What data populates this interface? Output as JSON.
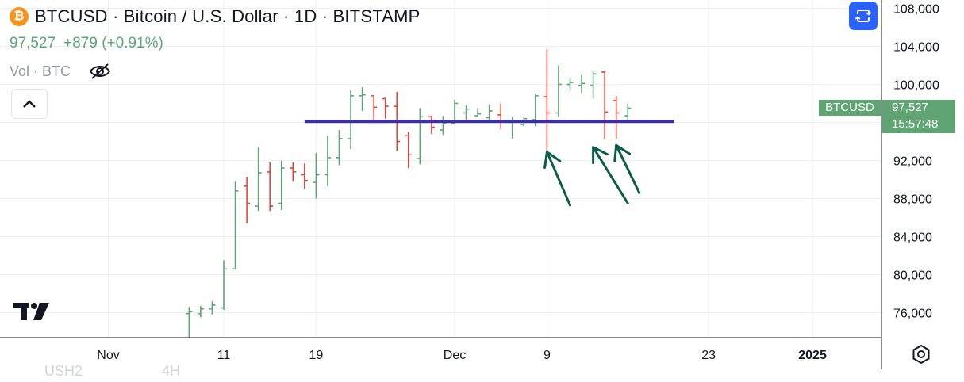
{
  "header": {
    "title": "BTCUSD · Bitcoin / U.S. Dollar · 1D · BITSTAMP",
    "coin_icon": "bitcoin-icon",
    "coin_glyph": "₿",
    "price": "97,527",
    "change": "+879 (+0.91%)",
    "volume_label": "Vol · BTC"
  },
  "price_badge": {
    "symbol": "BTCUSD",
    "price": "97,527",
    "countdown": "15:57:48"
  },
  "footer_ghost": [
    "USH2",
    "4H"
  ],
  "colors": {
    "up": "#5fa472",
    "down": "#e0453a",
    "support_line": "#3d2fa8",
    "arrow": "#0c5c48",
    "grid": "#edeff3",
    "accent_button": "#2962ff"
  },
  "chart_data": {
    "type": "ohlc",
    "title": "BTCUSD · Bitcoin / U.S. Dollar · 1D · BITSTAMP",
    "ylim": [
      73000,
      109000
    ],
    "y_ticks": [
      76000,
      80000,
      84000,
      88000,
      92000,
      96000,
      100000,
      104000,
      108000
    ],
    "y_tick_labels": [
      "76,000",
      "80,000",
      "84,000",
      "88,000",
      "92,000",
      "100,000",
      "104,000",
      "108,000"
    ],
    "x_tick_labels": [
      "Nov",
      "11",
      "19",
      "Dec",
      "9",
      "23",
      "2025"
    ],
    "x_ticks": [
      "2024-11-01",
      "2024-11-11",
      "2024-11-19",
      "2024-12-01",
      "2024-12-09",
      "2024-12-23",
      "2025-01-01"
    ],
    "xlim": [
      "2024-10-24",
      "2025-01-07"
    ],
    "grid": true,
    "candles": [
      {
        "date": "2024-11-08",
        "open": 75900,
        "high": 76600,
        "low": 73200,
        "close": 76100
      },
      {
        "date": "2024-11-09",
        "open": 75900,
        "high": 76700,
        "low": 75500,
        "close": 76400
      },
      {
        "date": "2024-11-10",
        "open": 76400,
        "high": 77200,
        "low": 75800,
        "close": 76800
      },
      {
        "date": "2024-11-11",
        "open": 76500,
        "high": 81500,
        "low": 76300,
        "close": 80600
      },
      {
        "date": "2024-11-12",
        "open": 80600,
        "high": 89800,
        "low": 80600,
        "close": 88800
      },
      {
        "date": "2024-11-13",
        "open": 89300,
        "high": 90300,
        "low": 85400,
        "close": 87500
      },
      {
        "date": "2024-11-14",
        "open": 87200,
        "high": 93400,
        "low": 86700,
        "close": 90700
      },
      {
        "date": "2024-11-15",
        "open": 90800,
        "high": 91800,
        "low": 86700,
        "close": 87200
      },
      {
        "date": "2024-11-16",
        "open": 87500,
        "high": 92000,
        "low": 86800,
        "close": 91200
      },
      {
        "date": "2024-11-17",
        "open": 91200,
        "high": 91800,
        "low": 89800,
        "close": 90800
      },
      {
        "date": "2024-11-18",
        "open": 90500,
        "high": 91700,
        "low": 89000,
        "close": 89900
      },
      {
        "date": "2024-11-19",
        "open": 89700,
        "high": 92800,
        "low": 88000,
        "close": 90500
      },
      {
        "date": "2024-11-20",
        "open": 90500,
        "high": 94600,
        "low": 89300,
        "close": 92300
      },
      {
        "date": "2024-11-21",
        "open": 92300,
        "high": 95200,
        "low": 91500,
        "close": 94300
      },
      {
        "date": "2024-11-22",
        "open": 94300,
        "high": 99400,
        "low": 93200,
        "close": 98800
      },
      {
        "date": "2024-11-23",
        "open": 98800,
        "high": 99700,
        "low": 97200,
        "close": 98900
      },
      {
        "date": "2024-11-24",
        "open": 98800,
        "high": 98700,
        "low": 96300,
        "close": 97600
      },
      {
        "date": "2024-11-25",
        "open": 98500,
        "high": 98600,
        "low": 96400,
        "close": 97700
      },
      {
        "date": "2024-11-26",
        "open": 97700,
        "high": 99200,
        "low": 93000,
        "close": 94000
      },
      {
        "date": "2024-11-27",
        "open": 94600,
        "high": 95000,
        "low": 91200,
        "close": 92600
      },
      {
        "date": "2024-11-28",
        "open": 92200,
        "high": 97500,
        "low": 91600,
        "close": 96600
      },
      {
        "date": "2024-11-29",
        "open": 96600,
        "high": 96700,
        "low": 94800,
        "close": 95500
      },
      {
        "date": "2024-11-30",
        "open": 95200,
        "high": 96700,
        "low": 94700,
        "close": 95900
      },
      {
        "date": "2024-12-01",
        "open": 95900,
        "high": 98400,
        "low": 96000,
        "close": 98000
      },
      {
        "date": "2024-12-02",
        "open": 97000,
        "high": 97800,
        "low": 96200,
        "close": 97400
      },
      {
        "date": "2024-12-03",
        "open": 96700,
        "high": 97500,
        "low": 96600,
        "close": 96900
      },
      {
        "date": "2024-12-04",
        "open": 96500,
        "high": 97900,
        "low": 96200,
        "close": 97200
      },
      {
        "date": "2024-12-05",
        "open": 96800,
        "high": 98000,
        "low": 95300,
        "close": 96100
      },
      {
        "date": "2024-12-06",
        "open": 96000,
        "high": 96600,
        "low": 94300,
        "close": 96200
      },
      {
        "date": "2024-12-07",
        "open": 95800,
        "high": 96600,
        "low": 95600,
        "close": 96400
      },
      {
        "date": "2024-12-08",
        "open": 96300,
        "high": 99000,
        "low": 95600,
        "close": 98800
      },
      {
        "date": "2024-12-09",
        "open": 98700,
        "high": 103700,
        "low": 92400,
        "close": 97000
      },
      {
        "date": "2024-12-10",
        "open": 97000,
        "high": 102000,
        "low": 96600,
        "close": 100000
      },
      {
        "date": "2024-12-11",
        "open": 100000,
        "high": 100700,
        "low": 99300,
        "close": 100200
      },
      {
        "date": "2024-12-12",
        "open": 99900,
        "high": 101000,
        "low": 99100,
        "close": 100100
      },
      {
        "date": "2024-12-13",
        "open": 99900,
        "high": 101400,
        "low": 98500,
        "close": 101100
      },
      {
        "date": "2024-12-14",
        "open": 101300,
        "high": 101400,
        "low": 94200,
        "close": 97100
      },
      {
        "date": "2024-12-15",
        "open": 98300,
        "high": 98800,
        "low": 94300,
        "close": 97000
      },
      {
        "date": "2024-12-16",
        "open": 96700,
        "high": 98000,
        "low": 96200,
        "close": 97500
      }
    ],
    "annotations": [
      {
        "type": "horizontal-line",
        "price": 96100,
        "from": "2024-11-18",
        "to": "2024-12-20"
      },
      {
        "type": "arrow",
        "from": {
          "date": "2024-12-11",
          "price": 87300
        },
        "to": {
          "date": "2024-12-09",
          "price": 92900
        }
      },
      {
        "type": "arrow",
        "from": {
          "date": "2024-12-16",
          "price": 87500
        },
        "to": {
          "date": "2024-12-13",
          "price": 93400
        }
      },
      {
        "type": "arrow",
        "from": {
          "date": "2024-12-17",
          "price": 88600
        },
        "to": {
          "date": "2024-12-15",
          "price": 93600
        }
      }
    ]
  }
}
